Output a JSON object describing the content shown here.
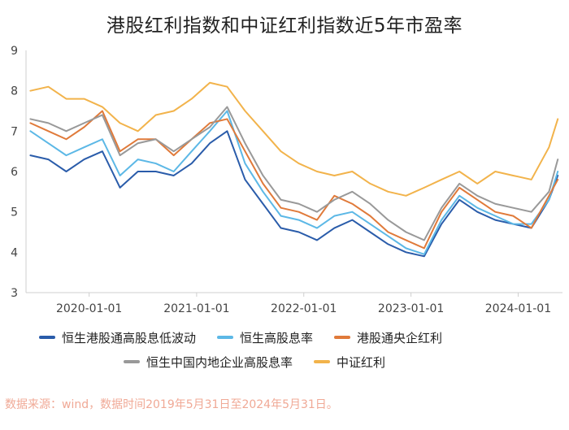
{
  "title": "港股红利指数和中证红利指数近5年市盈率",
  "source_note": "数据来源：wind，数据时间2019年5月31日至2024年5月31日。",
  "chart_data": {
    "type": "line",
    "title": "港股红利指数和中证红利指数近5年市盈率",
    "xlabel": "",
    "ylabel": "",
    "xlim": [
      "2019-05-31",
      "2024-05-31"
    ],
    "ylim": [
      3,
      9
    ],
    "y_ticks": [
      3,
      4,
      5,
      6,
      7,
      8,
      9
    ],
    "x_ticks": [
      "2020-01-01",
      "2021-01-01",
      "2022-01-01",
      "2023-01-01",
      "2024-01-01"
    ],
    "grid": false,
    "legend_position": "bottom",
    "x": [
      "2019-06",
      "2019-08",
      "2019-10",
      "2019-12",
      "2020-02",
      "2020-04",
      "2020-06",
      "2020-08",
      "2020-10",
      "2020-12",
      "2021-02",
      "2021-04",
      "2021-06",
      "2021-08",
      "2021-10",
      "2021-12",
      "2022-02",
      "2022-04",
      "2022-06",
      "2022-08",
      "2022-10",
      "2022-12",
      "2023-02",
      "2023-04",
      "2023-06",
      "2023-08",
      "2023-10",
      "2023-12",
      "2024-02",
      "2024-04",
      "2024-05"
    ],
    "series": [
      {
        "name": "恒生港股通高股息低波动",
        "color": "#2a5caa",
        "values": [
          6.4,
          6.3,
          6.0,
          6.3,
          6.5,
          5.6,
          6.0,
          6.0,
          5.9,
          6.2,
          6.7,
          7.0,
          5.8,
          5.2,
          4.6,
          4.5,
          4.3,
          4.6,
          4.8,
          4.5,
          4.2,
          4.0,
          3.9,
          4.7,
          5.3,
          5.0,
          4.8,
          4.7,
          4.6,
          5.3,
          5.9
        ]
      },
      {
        "name": "恒生高股息率",
        "color": "#5cb8e6",
        "values": [
          7.0,
          6.7,
          6.4,
          6.6,
          6.8,
          5.9,
          6.3,
          6.2,
          6.0,
          6.5,
          7.0,
          7.5,
          6.2,
          5.5,
          4.9,
          4.8,
          4.6,
          4.9,
          5.0,
          4.7,
          4.4,
          4.1,
          3.95,
          4.8,
          5.4,
          5.1,
          4.9,
          4.7,
          4.7,
          5.3,
          6.0
        ]
      },
      {
        "name": "港股通央企红利",
        "color": "#e07a3a",
        "values": [
          7.2,
          7.0,
          6.8,
          7.1,
          7.5,
          6.5,
          6.8,
          6.8,
          6.4,
          6.8,
          7.2,
          7.3,
          6.5,
          5.7,
          5.1,
          5.0,
          4.8,
          5.4,
          5.2,
          4.9,
          4.5,
          4.3,
          4.1,
          5.0,
          5.6,
          5.3,
          5.0,
          4.9,
          4.6,
          5.4,
          5.8
        ]
      },
      {
        "name": "恒生中国内地企业高股息率",
        "color": "#999999",
        "values": [
          7.3,
          7.2,
          7.0,
          7.2,
          7.4,
          6.4,
          6.7,
          6.8,
          6.5,
          6.8,
          7.1,
          7.6,
          6.7,
          5.9,
          5.3,
          5.2,
          5.0,
          5.3,
          5.5,
          5.2,
          4.8,
          4.5,
          4.3,
          5.1,
          5.7,
          5.4,
          5.2,
          5.1,
          5.0,
          5.5,
          6.3
        ]
      },
      {
        "name": "中证红利",
        "color": "#f2b34b",
        "values": [
          8.0,
          8.1,
          7.8,
          7.8,
          7.6,
          7.2,
          7.0,
          7.4,
          7.5,
          7.8,
          8.2,
          8.1,
          7.5,
          7.0,
          6.5,
          6.2,
          6.0,
          5.9,
          6.0,
          5.7,
          5.5,
          5.4,
          5.6,
          5.8,
          6.0,
          5.7,
          6.0,
          5.9,
          5.8,
          6.6,
          7.3
        ]
      }
    ]
  }
}
